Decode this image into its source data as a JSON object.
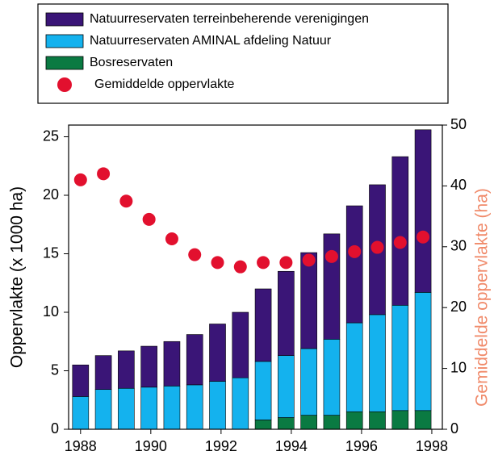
{
  "chart_data": {
    "type": "bar",
    "stacked": true,
    "ylabel": "Oppervlakte (x 1000 ha)",
    "y2label": "Gemiddelde oppervlakte (ha)",
    "y2label_color": "#f08a6a",
    "x": [
      1988,
      1988.65,
      1989.3,
      1989.95,
      1990.6,
      1991.25,
      1991.9,
      1992.55,
      1993.2,
      1993.85,
      1994.5,
      1995.15,
      1995.8,
      1996.45,
      1997.1,
      1997.75
    ],
    "xlim": [
      1987.66,
      1998.3
    ],
    "xticks": [
      1988,
      1990,
      1992,
      1994,
      1996,
      1998
    ],
    "ylim": [
      0,
      26
    ],
    "yticks": [
      0,
      5,
      10,
      15,
      20,
      25
    ],
    "y2lim": [
      0,
      50
    ],
    "y2ticks": [
      0,
      10,
      20,
      30,
      40,
      50
    ],
    "series": [
      {
        "name": "Natuurreservaten terreinbeherende verenigingen",
        "type": "bar",
        "color": "#3a1577",
        "values": [
          2.7,
          2.9,
          3.2,
          3.5,
          3.8,
          4.3,
          4.9,
          5.6,
          6.2,
          7.2,
          8.2,
          9.0,
          10.0,
          11.1,
          12.7,
          13.9
        ]
      },
      {
        "name": "Natuurreservaten AMINAL afdeling Natuur",
        "type": "bar",
        "color": "#14b2ee",
        "values": [
          2.8,
          3.4,
          3.5,
          3.6,
          3.7,
          3.8,
          4.1,
          4.4,
          5.0,
          5.3,
          5.7,
          6.5,
          7.6,
          8.3,
          9.0,
          10.1
        ]
      },
      {
        "name": "Bosreservaten",
        "type": "bar",
        "color": "#0a7a42",
        "values": [
          0,
          0,
          0,
          0,
          0,
          0,
          0,
          0,
          0.8,
          1.0,
          1.2,
          1.2,
          1.5,
          1.5,
          1.6,
          1.6
        ]
      },
      {
        "name": "Gemiddelde oppervlakte",
        "type": "scatter",
        "axis": "y2",
        "color": "#e2102e",
        "values": [
          41,
          42,
          37.5,
          34.5,
          31.3,
          28.7,
          27.4,
          26.7,
          27.4,
          27.4,
          27.8,
          28.4,
          29.2,
          29.9,
          30.7,
          31.6
        ]
      }
    ]
  }
}
